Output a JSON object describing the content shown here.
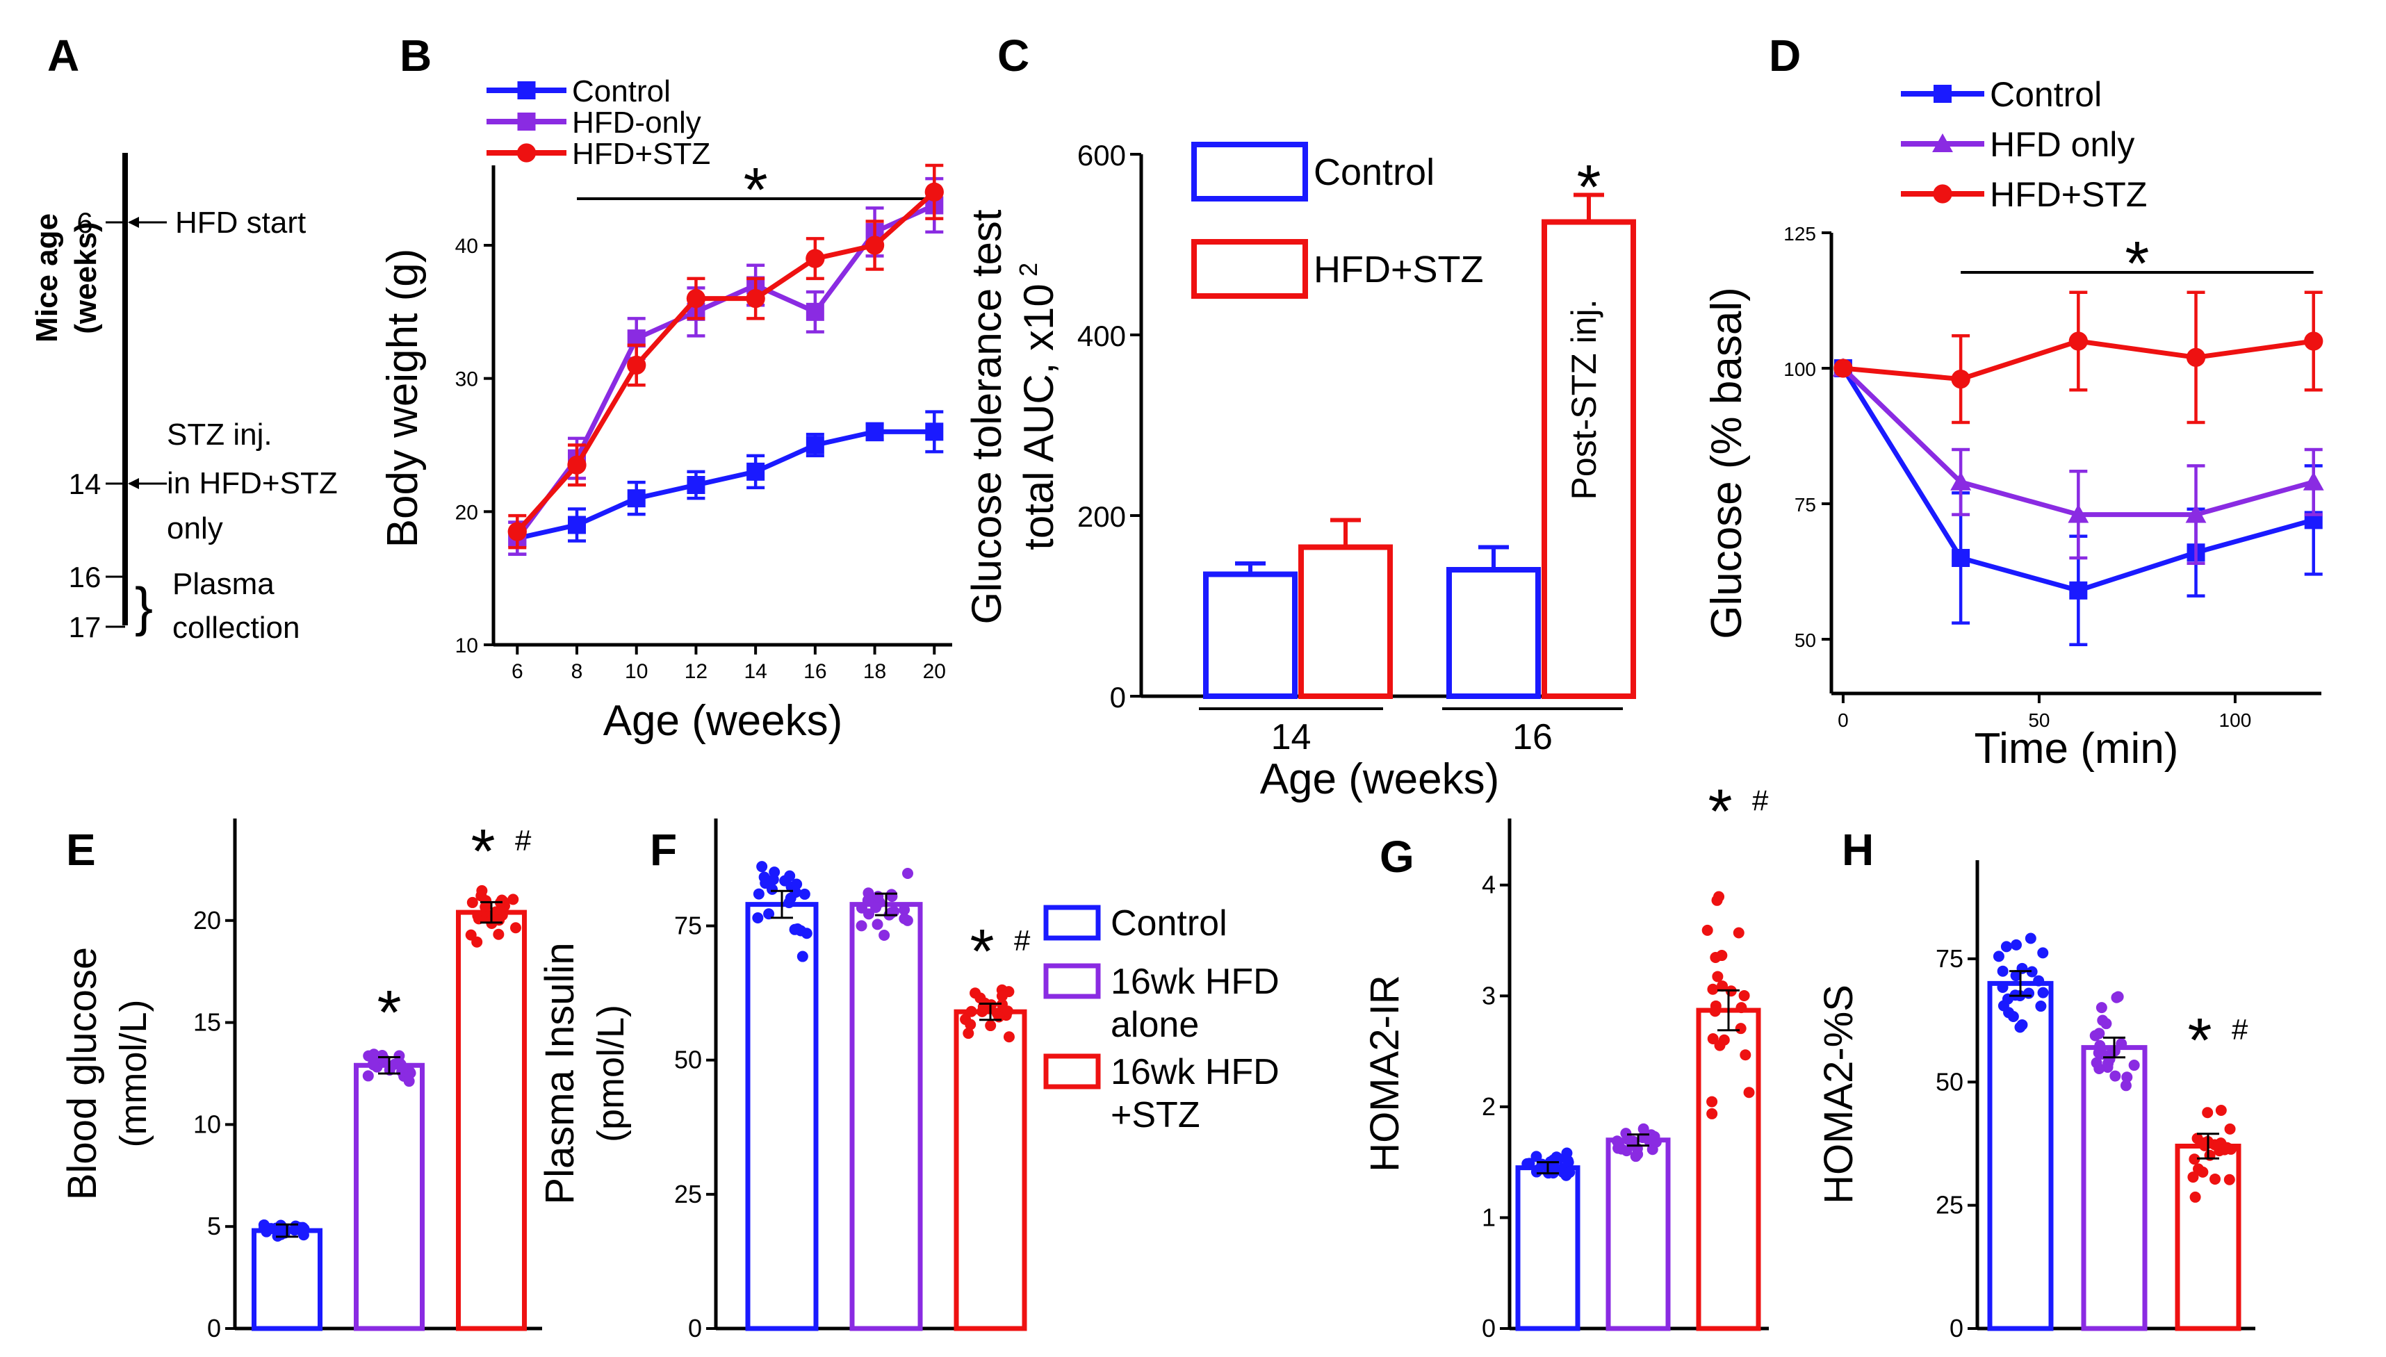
{
  "colors": {
    "control": "#1a1aff",
    "hfd_only": "#8a2be2",
    "hfd_stz": "#ee1111",
    "axis": "#000000",
    "background": "#ffffff"
  },
  "significance": {
    "star": "*",
    "hash": "#"
  },
  "panel_a": {
    "letter": "A",
    "axis_label_line1": "Mice age",
    "axis_label_line2": "(weeks)",
    "events": [
      {
        "age": "6",
        "text_lines": [
          "HFD start"
        ]
      },
      {
        "age": "14",
        "text_lines": [
          "STZ  inj.",
          "in HFD+STZ",
          "only"
        ]
      },
      {
        "age": "16",
        "text_lines": [
          "Plasma"
        ]
      },
      {
        "age": "17",
        "text_lines": [
          "collection"
        ]
      }
    ]
  },
  "panel_c_annotation": "Post-STZ inj.",
  "chart_data": [
    {
      "panel": "B",
      "type": "line",
      "xlabel": "Age (weeks)",
      "ylabel": "Body weight (g)",
      "x": [
        6,
        8,
        10,
        12,
        14,
        16,
        18,
        20
      ],
      "xlim": [
        5.2,
        20.6
      ],
      "ylim": [
        10,
        46
      ],
      "yticks": [
        10,
        20,
        30,
        40
      ],
      "legend_position": "top-left",
      "significance_bar": {
        "from": 8,
        "to": 20,
        "label": "*"
      },
      "series": [
        {
          "name": "Control",
          "key": "control",
          "marker": "square",
          "values": [
            18,
            19,
            21,
            22,
            23,
            25,
            26,
            26
          ],
          "errors": [
            1.2,
            1.2,
            1.2,
            1.0,
            1.2,
            0.8,
            0.6,
            1.5
          ]
        },
        {
          "name": "HFD-only",
          "key": "hfd_only",
          "marker": "square",
          "values": [
            18,
            24,
            33,
            35,
            37,
            35,
            41,
            43
          ],
          "errors": [
            1.2,
            1.5,
            1.5,
            1.8,
            1.5,
            1.5,
            1.8,
            2.0
          ]
        },
        {
          "name": "HFD+STZ",
          "key": "hfd_stz",
          "marker": "circle",
          "values": [
            18.5,
            23.5,
            31,
            36,
            36,
            39,
            40,
            44
          ],
          "errors": [
            1.2,
            1.5,
            1.5,
            1.5,
            1.5,
            1.5,
            1.8,
            2.0
          ]
        }
      ]
    },
    {
      "panel": "C",
      "type": "bar",
      "title": "",
      "xlabel": "Age (weeks)",
      "ylabel_line1": "Glucose tolerance test",
      "ylabel_line2": "total AUC, x10",
      "ylabel_superscript": "2",
      "categories": [
        "14",
        "16"
      ],
      "ylim": [
        0,
        600
      ],
      "yticks": [
        0,
        200,
        400,
        600
      ],
      "legend_position": "top-left",
      "series": [
        {
          "name": "Control",
          "key": "control",
          "values": [
            135,
            140
          ],
          "errors": [
            12,
            25
          ]
        },
        {
          "name": "HFD+STZ",
          "key": "hfd_stz",
          "values": [
            165,
            525
          ],
          "errors": [
            30,
            30
          ]
        }
      ],
      "significance": [
        {
          "category": "16",
          "series": "HFD+STZ",
          "label": "*"
        }
      ]
    },
    {
      "panel": "D",
      "type": "line",
      "xlabel": "Time (min)",
      "ylabel": "Glucose (% basal)",
      "x": [
        0,
        30,
        60,
        90,
        120
      ],
      "xlim": [
        -3,
        122
      ],
      "xticks": [
        0,
        50,
        100
      ],
      "ylim": [
        40,
        125
      ],
      "yticks": [
        50,
        75,
        100,
        125
      ],
      "legend_position": "top-left",
      "significance_bar": {
        "from": 30,
        "to": 120,
        "label": "*"
      },
      "series": [
        {
          "name": "Control",
          "key": "control",
          "marker": "square",
          "values": [
            100,
            65,
            59,
            66,
            72
          ],
          "errors": [
            0,
            12,
            10,
            8,
            10
          ]
        },
        {
          "name": "HFD only",
          "key": "hfd_only",
          "marker": "triangle",
          "values": [
            100,
            79,
            73,
            73,
            79
          ],
          "errors": [
            0,
            6,
            8,
            9,
            6
          ]
        },
        {
          "name": "HFD+STZ",
          "key": "hfd_stz",
          "marker": "circle",
          "values": [
            100,
            98,
            105,
            102,
            105
          ],
          "errors": [
            0,
            8,
            9,
            12,
            9
          ]
        }
      ]
    },
    {
      "panel": "E",
      "type": "bar",
      "ylabel_line1": "Blood glucose",
      "ylabel_line2": "(mmol/L)",
      "categories": [
        "Control",
        "16wk HFD alone",
        "16wk HFD +STZ"
      ],
      "series": [
        {
          "name": "Blood glucose",
          "keys": [
            "control",
            "hfd_only",
            "hfd_stz"
          ],
          "values": [
            4.8,
            12.9,
            20.4
          ],
          "errors": [
            0.3,
            0.4,
            0.5
          ]
        }
      ],
      "ylim": [
        0,
        25
      ],
      "yticks": [
        0,
        5,
        10,
        15,
        20
      ],
      "significance": [
        "",
        "*",
        "*#"
      ],
      "individual_points": {
        "count_per_group": 22,
        "spread": [
          0.5,
          1.2,
          1.6
        ]
      }
    },
    {
      "panel": "F",
      "type": "bar",
      "ylabel_line1": "Plasma Insulin",
      "ylabel_line2": "(pmol/L)",
      "categories": [
        "Control",
        "16wk HFD alone",
        "16wk HFD +STZ"
      ],
      "series": [
        {
          "name": "Plasma Insulin",
          "keys": [
            "control",
            "hfd_only",
            "hfd_stz"
          ],
          "values": [
            79,
            79,
            59
          ],
          "errors": [
            2.5,
            2.0,
            1.5
          ]
        }
      ],
      "ylim": [
        0,
        95
      ],
      "yticks": [
        0,
        25,
        50,
        75
      ],
      "significance": [
        "",
        "",
        "*#"
      ],
      "legend_position": "right",
      "legend": [
        {
          "key": "control",
          "lines": [
            "Control"
          ]
        },
        {
          "key": "hfd_only",
          "lines": [
            "16wk HFD",
            "alone"
          ]
        },
        {
          "key": "hfd_stz",
          "lines": [
            "16wk HFD",
            "+STZ"
          ]
        }
      ],
      "individual_points": {
        "count_per_group": 22,
        "spread": [
          12,
          8,
          6
        ]
      }
    },
    {
      "panel": "G",
      "type": "bar",
      "ylabel": "HOMA2-IR",
      "categories": [
        "Control",
        "16wk HFD alone",
        "16wk HFD +STZ"
      ],
      "series": [
        {
          "name": "HOMA2-IR",
          "keys": [
            "control",
            "hfd_only",
            "hfd_stz"
          ],
          "values": [
            1.45,
            1.7,
            2.87
          ],
          "errors": [
            0.05,
            0.05,
            0.18
          ]
        }
      ],
      "ylim": [
        0,
        4.6
      ],
      "yticks": [
        0,
        1,
        2,
        3,
        4
      ],
      "significance": [
        "",
        "",
        "*#"
      ],
      "individual_points": {
        "count_per_group": 22,
        "spread": [
          0.18,
          0.2,
          1.6
        ]
      }
    },
    {
      "panel": "H",
      "type": "bar",
      "ylabel": "HOMA2-%S",
      "categories": [
        "Control",
        "16wk HFD alone",
        "16wk HFD +STZ"
      ],
      "series": [
        {
          "name": "HOMA2-%S",
          "keys": [
            "control",
            "hfd_only",
            "hfd_stz"
          ],
          "values": [
            70,
            57,
            37
          ],
          "errors": [
            2.5,
            2.0,
            2.5
          ]
        }
      ],
      "ylim": [
        0,
        95
      ],
      "yticks": [
        0,
        25,
        50,
        75
      ],
      "significance": [
        "",
        "",
        "*#"
      ],
      "individual_points": {
        "count_per_group": 22,
        "spread": [
          15,
          13,
          15
        ]
      }
    }
  ]
}
